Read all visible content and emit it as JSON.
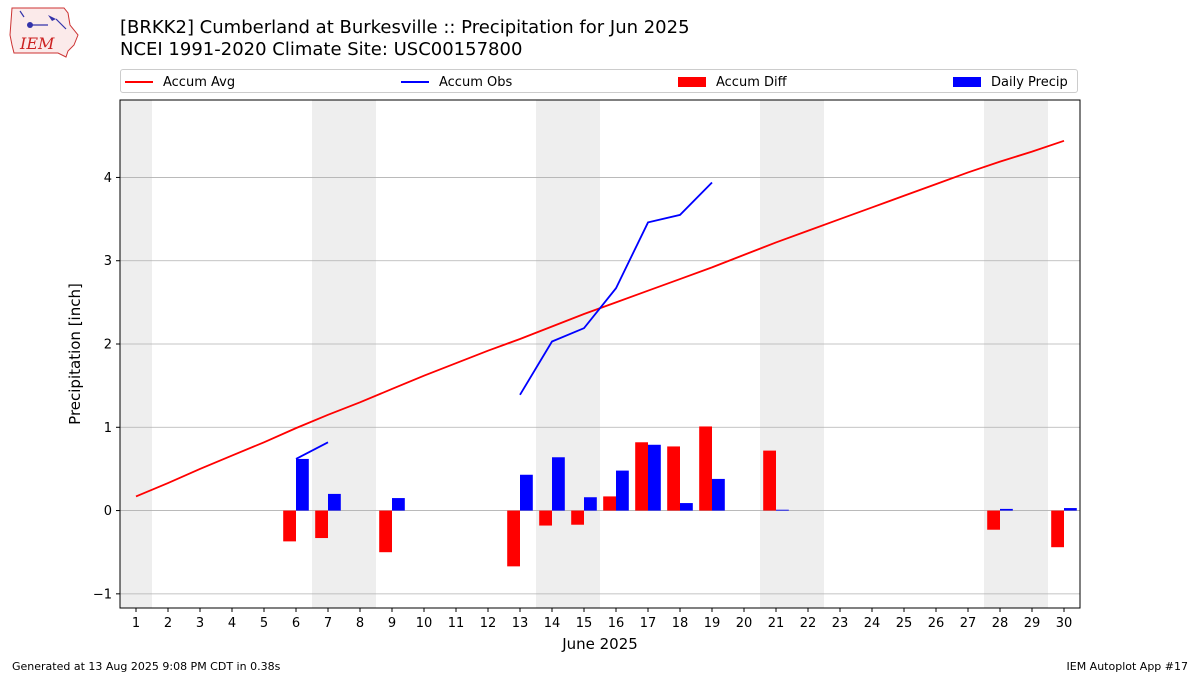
{
  "header": {
    "title_line1": "[BRKK2] Cumberland at Burkesville :: Precipitation for Jun 2025",
    "title_line2": "NCEI 1991-2020 Climate Site: USC00157800",
    "logo_text": "IEM"
  },
  "footer": {
    "generated": "Generated at 13 Aug 2025 9:08 PM CDT in 0.38s",
    "app": "IEM Autoplot App #17"
  },
  "legend": {
    "accum_avg": "Accum Avg",
    "accum_obs": "Accum Obs",
    "accum_diff": "Accum Diff",
    "daily_precip": "Daily Precip"
  },
  "colors": {
    "accum_avg": "#ff0000",
    "accum_obs": "#0000ff",
    "accum_diff": "#ff0000",
    "daily_precip": "#0000ff",
    "weekend_shade": "#eeeeee",
    "grid": "#b0b0b0"
  },
  "chart_data": {
    "type": "bar",
    "xlabel": "June 2025",
    "ylabel": "Precipitation [inch]",
    "xlim": [
      0.5,
      30.5
    ],
    "ylim": [
      -1.17,
      4.93
    ],
    "yticks": [
      -1,
      0,
      1,
      2,
      3,
      4
    ],
    "categories": [
      1,
      2,
      3,
      4,
      5,
      6,
      7,
      8,
      9,
      10,
      11,
      12,
      13,
      14,
      15,
      16,
      17,
      18,
      19,
      20,
      21,
      22,
      23,
      24,
      25,
      26,
      27,
      28,
      29,
      30
    ],
    "shaded_days": [
      [
        0.5,
        1.5
      ],
      [
        6.5,
        8.5
      ],
      [
        13.5,
        15.5
      ],
      [
        20.5,
        22.5
      ],
      [
        27.5,
        29.5
      ]
    ],
    "grid": "horizontal",
    "legend_position": "top",
    "series": [
      {
        "name": "Accum Avg",
        "kind": "line",
        "x": [
          1,
          2,
          3,
          4,
          5,
          6,
          7,
          8,
          9,
          10,
          11,
          12,
          13,
          14,
          15,
          16,
          17,
          18,
          19,
          20,
          21,
          22,
          23,
          24,
          25,
          26,
          27,
          28,
          29,
          30
        ],
        "values": [
          0.17,
          0.33,
          0.5,
          0.66,
          0.82,
          0.99,
          1.15,
          1.3,
          1.46,
          1.62,
          1.77,
          1.92,
          2.06,
          2.21,
          2.36,
          2.5,
          2.64,
          2.78,
          2.92,
          3.07,
          3.22,
          3.36,
          3.5,
          3.64,
          3.78,
          3.92,
          4.06,
          4.19,
          4.31,
          4.44
        ]
      },
      {
        "name": "Accum Obs",
        "kind": "line",
        "segments": [
          {
            "x": [
              6,
              7
            ],
            "values": [
              0.62,
              0.82
            ]
          },
          {
            "x": [
              13,
              14,
              15,
              16,
              17,
              18,
              19
            ],
            "values": [
              1.39,
              2.03,
              2.19,
              2.67,
              3.46,
              3.55,
              3.94
            ]
          }
        ]
      },
      {
        "name": "Accum Diff",
        "kind": "bar",
        "x": [
          6,
          7,
          9,
          13,
          14,
          15,
          16,
          17,
          18,
          19,
          21,
          28,
          30
        ],
        "values": [
          -0.37,
          -0.33,
          -0.5,
          -0.67,
          -0.18,
          -0.17,
          0.17,
          0.82,
          0.77,
          1.01,
          0.72,
          -0.23,
          -0.44
        ]
      },
      {
        "name": "Daily Precip",
        "kind": "bar",
        "x": [
          6,
          7,
          9,
          13,
          14,
          15,
          16,
          17,
          18,
          19,
          21,
          28,
          30
        ],
        "values": [
          0.62,
          0.2,
          0.15,
          0.43,
          0.64,
          0.16,
          0.48,
          0.79,
          0.09,
          0.38,
          0.01,
          0.02,
          0.03
        ]
      }
    ]
  }
}
